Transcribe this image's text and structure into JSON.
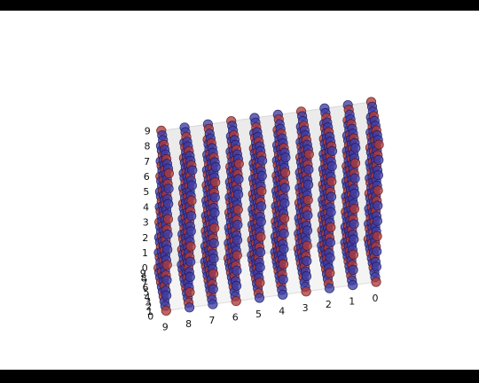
{
  "chart_data": {
    "type": "scatter3d",
    "title": "",
    "xlabel": "",
    "ylabel": "",
    "zlabel": "",
    "x_ticks": [
      "0",
      "1",
      "2",
      "3",
      "4",
      "5",
      "6",
      "7",
      "8",
      "9"
    ],
    "y_ticks": [
      "0",
      "1",
      "2",
      "3",
      "4",
      "5",
      "6",
      "7",
      "8",
      "9"
    ],
    "z_ticks": [
      "0",
      "1",
      "2",
      "3",
      "4",
      "5",
      "6",
      "7",
      "8",
      "9"
    ],
    "xlim": [
      0,
      9
    ],
    "ylim": [
      0,
      9
    ],
    "zlim": [
      0,
      9
    ],
    "grid": "points at every integer (x, y, z) with 0 <= x, y, z <= 9",
    "point_count": 1000,
    "series": [
      {
        "color_name": "red",
        "color": "#b03a3a",
        "rule": "(x + y + z) mod 3 == 0"
      },
      {
        "color_name": "blue",
        "color": "#3d3da8",
        "rule": "(x + y + z) mod 3 != 0"
      }
    ],
    "legend": "none",
    "pane_color": "#ebebeb"
  }
}
